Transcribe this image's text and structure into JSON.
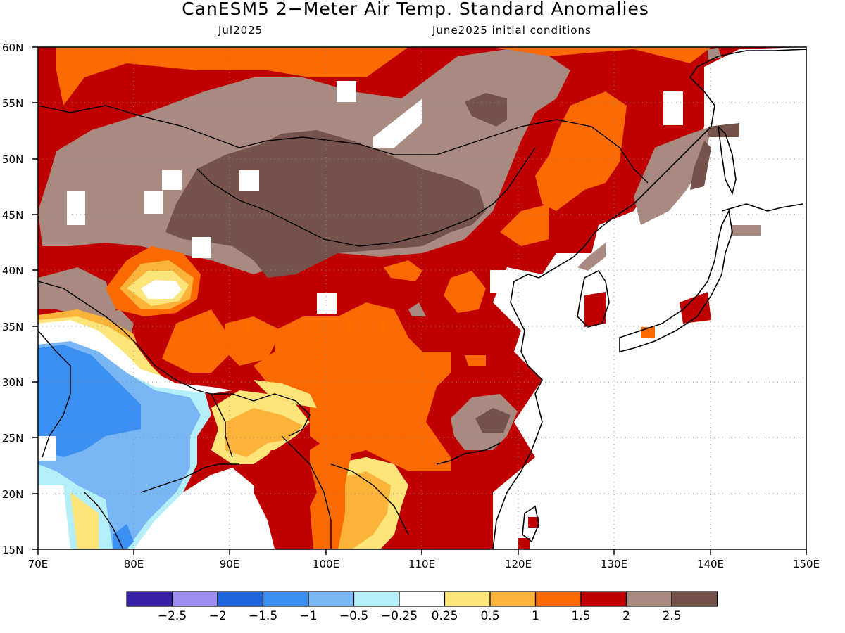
{
  "title": "CanESM5 2−Meter Air Temp. Standard Anomalies",
  "subtitle_left": "Jul2025",
  "subtitle_right": "June2025 initial conditions",
  "lat_labels": [
    "60N",
    "55N",
    "50N",
    "45N",
    "40N",
    "35N",
    "30N",
    "25N",
    "20N",
    "15N"
  ],
  "lon_labels": [
    "70E",
    "80E",
    "90E",
    "100E",
    "110E",
    "120E",
    "130E",
    "140E",
    "150E"
  ],
  "colorbar": {
    "colors": [
      "#3a1fa8",
      "#9d8ef0",
      "#1f66e0",
      "#3a8ff0",
      "#78b6f5",
      "#b4eef8",
      "#ffffff",
      "#fde57a",
      "#fcb33a",
      "#fa6a00",
      "#c00000",
      "#a88a80",
      "#75524a"
    ],
    "labels": [
      "−2.5",
      "−2",
      "−1.5",
      "−1",
      "−0.5",
      "−0.25",
      "0.25",
      "0.5",
      "1",
      "1.5",
      "2",
      "2.5"
    ]
  }
}
